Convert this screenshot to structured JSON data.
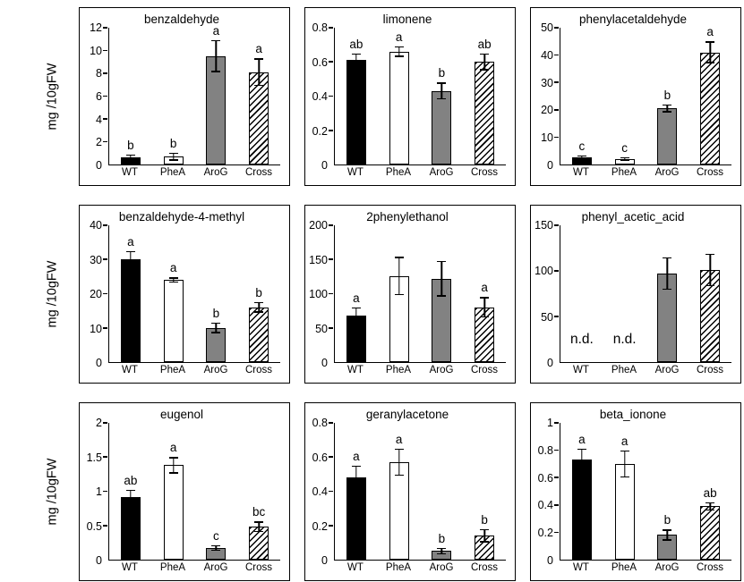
{
  "figure": {
    "ylabel": "mg /10gFW",
    "categories": [
      "WT",
      "PheA",
      "AroG",
      "Cross"
    ],
    "bar_fills": [
      "black",
      "white",
      "gray",
      "hatch"
    ],
    "colors": {
      "bar_black": "#000000",
      "bar_white": "#ffffff",
      "bar_gray": "#828282",
      "axis": "#000000"
    }
  },
  "chart_data": [
    {
      "type": "bar",
      "title": "benzaldehyde",
      "categories": [
        "WT",
        "PheA",
        "AroG",
        "Cross"
      ],
      "values": [
        0.6,
        0.7,
        9.5,
        8.1
      ],
      "errors": [
        0.3,
        0.35,
        1.4,
        1.2
      ],
      "letters": [
        "b",
        "b",
        "a",
        "a"
      ],
      "ylim": [
        0,
        12
      ],
      "yticks": [
        0,
        2,
        4,
        6,
        8,
        10,
        12
      ]
    },
    {
      "type": "bar",
      "title": "limonene",
      "categories": [
        "WT",
        "PheA",
        "AroG",
        "Cross"
      ],
      "values": [
        0.61,
        0.66,
        0.43,
        0.6
      ],
      "errors": [
        0.04,
        0.03,
        0.05,
        0.05
      ],
      "letters": [
        "ab",
        "a",
        "b",
        "ab"
      ],
      "ylim": [
        0,
        0.8
      ],
      "yticks": [
        0,
        0.2,
        0.4,
        0.6,
        0.8
      ]
    },
    {
      "type": "bar",
      "title": "phenylacetaldehyde",
      "categories": [
        "WT",
        "PheA",
        "AroG",
        "Cross"
      ],
      "values": [
        2.5,
        2,
        20.5,
        41
      ],
      "errors": [
        0.8,
        0.7,
        1.5,
        4
      ],
      "letters": [
        "c",
        "c",
        "b",
        "a"
      ],
      "ylim": [
        0,
        50
      ],
      "yticks": [
        0,
        10,
        20,
        30,
        40,
        50
      ]
    },
    {
      "type": "bar",
      "title": "benzaldehyde-4-methyl",
      "categories": [
        "WT",
        "PheA",
        "AroG",
        "Cross"
      ],
      "values": [
        30,
        24,
        10,
        16
      ],
      "errors": [
        2.5,
        0.8,
        1.5,
        1.5
      ],
      "letters": [
        "a",
        "a",
        "b",
        "b"
      ],
      "ylim": [
        0,
        40
      ],
      "yticks": [
        0,
        10,
        20,
        30,
        40
      ]
    },
    {
      "type": "bar",
      "title": "2phenylethanol",
      "categories": [
        "WT",
        "PheA",
        "AroG",
        "Cross"
      ],
      "values": [
        68,
        126,
        122,
        80
      ],
      "errors": [
        12,
        28,
        26,
        15
      ],
      "letters": [
        "a",
        "",
        "",
        "a"
      ],
      "ylim": [
        0,
        200
      ],
      "yticks": [
        0,
        50,
        100,
        150,
        200
      ]
    },
    {
      "type": "bar",
      "title": "phenyl_acetic_acid",
      "categories": [
        "WT",
        "PheA",
        "AroG",
        "Cross"
      ],
      "values": [
        null,
        null,
        97,
        101
      ],
      "errors": [
        null,
        null,
        18,
        18
      ],
      "letters": [
        "n.d.",
        "n.d.",
        "",
        ""
      ],
      "ylim": [
        0,
        150
      ],
      "yticks": [
        0,
        50,
        100,
        150
      ]
    },
    {
      "type": "bar",
      "title": "eugenol",
      "categories": [
        "WT",
        "PheA",
        "AroG",
        "Cross"
      ],
      "values": [
        0.92,
        1.38,
        0.17,
        0.48
      ],
      "errors": [
        0.1,
        0.12,
        0.04,
        0.08
      ],
      "letters": [
        "ab",
        "a",
        "c",
        "bc"
      ],
      "ylim": [
        0,
        2
      ],
      "yticks": [
        0,
        0.5,
        1,
        1.5,
        2
      ]
    },
    {
      "type": "bar",
      "title": "geranylacetone",
      "categories": [
        "WT",
        "PheA",
        "AroG",
        "Cross"
      ],
      "values": [
        0.48,
        0.57,
        0.05,
        0.14
      ],
      "errors": [
        0.07,
        0.08,
        0.02,
        0.04
      ],
      "letters": [
        "a",
        "a",
        "b",
        "b"
      ],
      "ylim": [
        0,
        0.8
      ],
      "yticks": [
        0,
        0.2,
        0.4,
        0.6,
        0.8
      ]
    },
    {
      "type": "bar",
      "title": "beta_ionone",
      "categories": [
        "WT",
        "PheA",
        "AroG",
        "Cross"
      ],
      "values": [
        0.73,
        0.7,
        0.18,
        0.39
      ],
      "errors": [
        0.08,
        0.1,
        0.04,
        0.03
      ],
      "letters": [
        "a",
        "a",
        "b",
        "ab"
      ],
      "ylim": [
        0,
        1
      ],
      "yticks": [
        0,
        0.2,
        0.4,
        0.6,
        0.8,
        1
      ]
    }
  ]
}
